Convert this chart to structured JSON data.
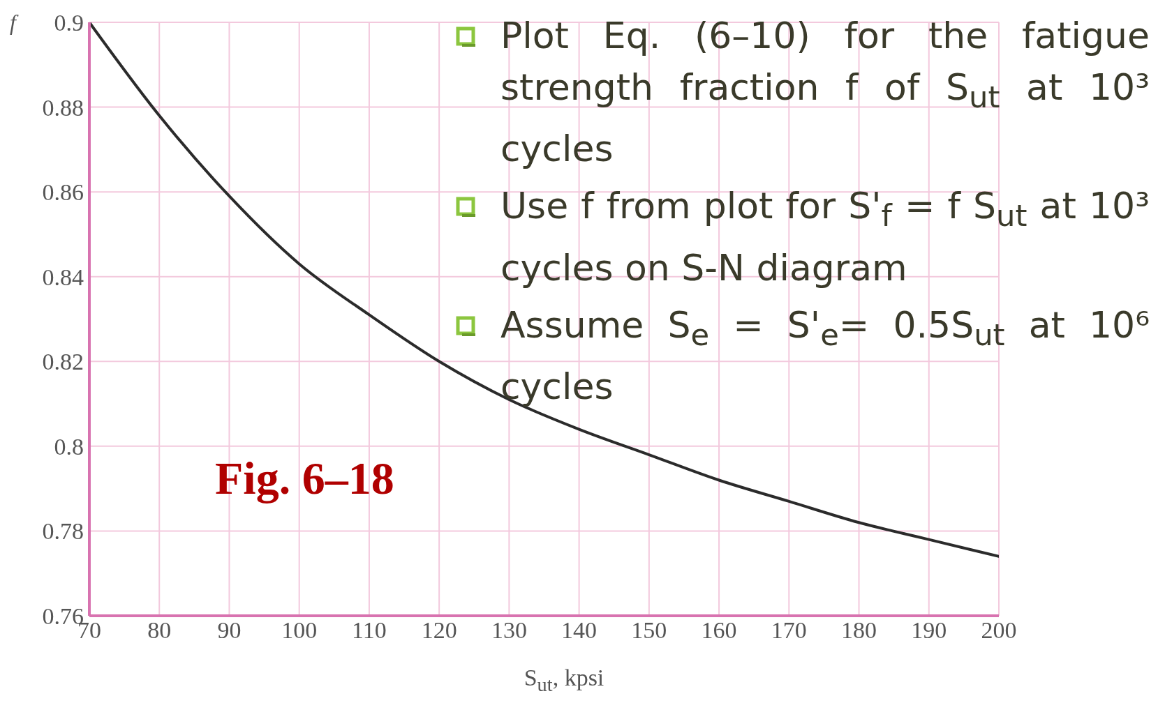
{
  "chart_data": {
    "type": "line",
    "xlabel": "S$_{ut}$, kpsi",
    "ylabel": "f",
    "x": [
      70,
      80,
      90,
      100,
      110,
      120,
      130,
      140,
      150,
      160,
      170,
      180,
      190,
      200
    ],
    "series": [
      {
        "color": "#2b2b2b",
        "values": [
          0.9,
          0.878,
          0.859,
          0.843,
          0.831,
          0.82,
          0.811,
          0.804,
          0.798,
          0.792,
          0.787,
          0.782,
          0.778,
          0.774
        ]
      }
    ],
    "xlim": [
      70,
      200
    ],
    "xticks": [
      70,
      80,
      90,
      100,
      110,
      120,
      130,
      140,
      150,
      160,
      170,
      180,
      190,
      200
    ],
    "ylim": [
      0.76,
      0.9
    ],
    "yticks": [
      0.76,
      0.78,
      0.8,
      0.82,
      0.84,
      0.86,
      0.88,
      0.9
    ],
    "grid": true,
    "legend": false,
    "marker": "none",
    "line_style": "solid",
    "annotations": [
      "Plot Eq. (6–10) for the fatigue strength fraction f of S$_{ut}$ at 10³ cycles",
      "Use f from plot for S'$_{f}$ = f S$_{ut}$ at 10³ cycles on S-N diagram",
      "Assume S$_{e}$ = S'$_{e}$= 0.5S$_{ut}$ at 10⁶ cycles",
      "Fig. 6–18"
    ]
  }
}
